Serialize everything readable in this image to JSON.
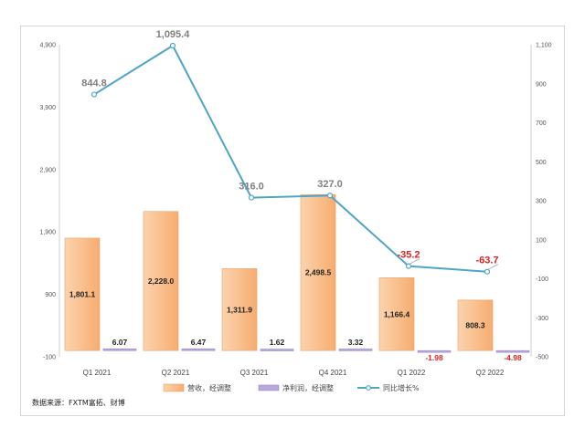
{
  "chart_data": {
    "type": "bar",
    "categories": [
      "Q1 2021",
      "Q2 2021",
      "Q3 2021",
      "Q4 2021",
      "Q1 2022",
      "Q2 2022"
    ],
    "series": [
      {
        "name": "营收，经调整",
        "kind": "bar",
        "axis": "left",
        "values": [
          1801.1,
          2228.0,
          1311.9,
          2498.5,
          1166.4,
          808.3
        ],
        "labels": [
          "1,801.1",
          "2,228.0",
          "1,311.9",
          "2,498.5",
          "1,166.4",
          "808.3"
        ],
        "color": "#f9c08f"
      },
      {
        "name": "净利润，经调整",
        "kind": "bar",
        "axis": "left",
        "values": [
          6.07,
          6.47,
          1.62,
          3.32,
          -1.98,
          -4.98
        ],
        "labels": [
          "6.07",
          "6.47",
          "1.62",
          "3.32",
          "-1.98",
          "-4.98"
        ],
        "color": "#b9a8dc"
      },
      {
        "name": "同比增长%",
        "kind": "line",
        "axis": "right",
        "values": [
          844.8,
          1095.4,
          316.0,
          327.0,
          -35.2,
          -63.7
        ],
        "labels": [
          "844.8",
          "1,095.4",
          "316.0",
          "327.0",
          "-35.2",
          "-63.7"
        ],
        "color": "#4fa5c4"
      }
    ],
    "left_axis": {
      "ticks": [
        "4,900",
        "3,900",
        "2,900",
        "1,900",
        "900",
        "-100"
      ],
      "ylim": [
        -100,
        4900
      ]
    },
    "right_axis": {
      "ticks": [
        "1,100",
        "900",
        "700",
        "500",
        "300",
        "100",
        "-100",
        "-300",
        "-500"
      ],
      "ylim": [
        -500,
        1100
      ]
    },
    "negative_label_color": "#e02020",
    "positive_point_label_color": "#7f7f7f",
    "grid": false,
    "legend_position": "bottom"
  },
  "source_note": "数据来源：FXTM富拓、财博"
}
